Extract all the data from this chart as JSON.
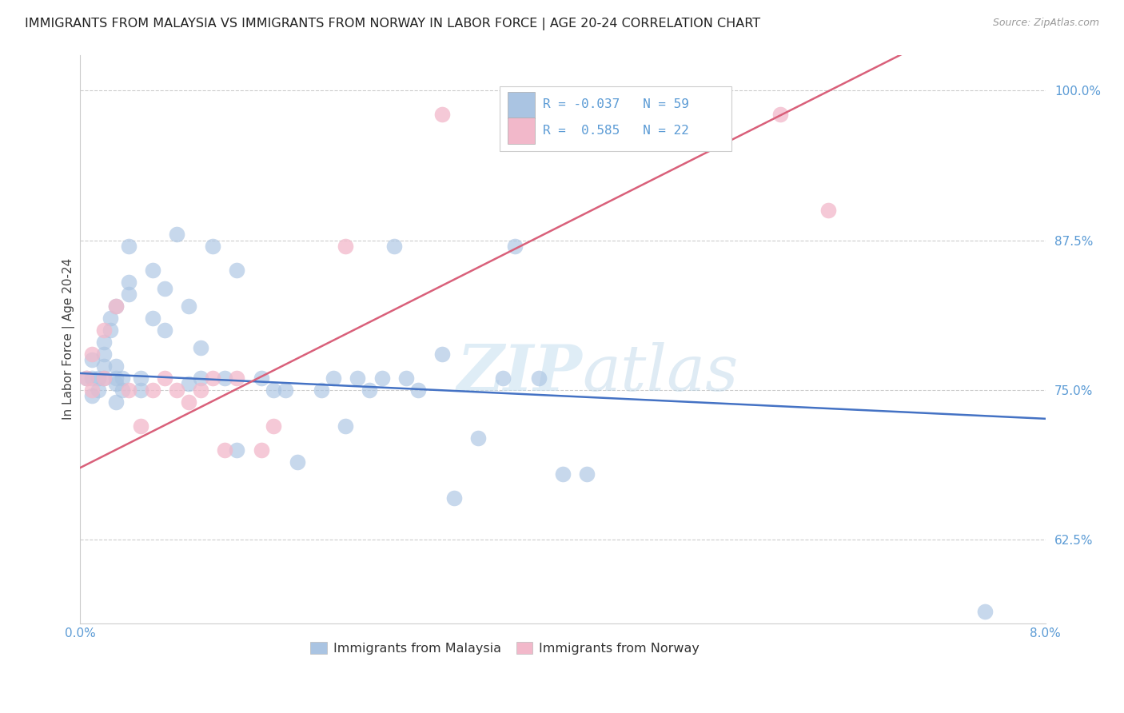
{
  "title": "IMMIGRANTS FROM MALAYSIA VS IMMIGRANTS FROM NORWAY IN LABOR FORCE | AGE 20-24 CORRELATION CHART",
  "source": "Source: ZipAtlas.com",
  "ylabel": "In Labor Force | Age 20-24",
  "x_min": 0.0,
  "x_max": 0.08,
  "y_min": 0.555,
  "y_max": 1.03,
  "y_ticks": [
    0.625,
    0.75,
    0.875,
    1.0
  ],
  "y_tick_labels": [
    "62.5%",
    "75.0%",
    "87.5%",
    "100.0%"
  ],
  "x_tick_positions": [
    0.0,
    0.01,
    0.02,
    0.03,
    0.04,
    0.05,
    0.06,
    0.07,
    0.08
  ],
  "x_tick_labels": [
    "0.0%",
    "",
    "",
    "",
    "",
    "",
    "",
    "",
    "8.0%"
  ],
  "blue_scatter_color": "#aac4e2",
  "pink_scatter_color": "#f2b8ca",
  "blue_line_color": "#4472c4",
  "pink_line_color": "#d9607a",
  "tick_label_color": "#5b9bd5",
  "watermark": "ZIPatlas",
  "malaysia_R": -0.037,
  "malaysia_N": 59,
  "norway_R": 0.585,
  "norway_N": 22,
  "malaysia_x": [
    0.0005,
    0.001,
    0.001,
    0.001,
    0.0015,
    0.0015,
    0.002,
    0.002,
    0.002,
    0.002,
    0.0025,
    0.0025,
    0.003,
    0.003,
    0.003,
    0.003,
    0.003,
    0.0035,
    0.0035,
    0.004,
    0.004,
    0.004,
    0.005,
    0.005,
    0.006,
    0.006,
    0.007,
    0.007,
    0.008,
    0.009,
    0.009,
    0.01,
    0.01,
    0.011,
    0.012,
    0.013,
    0.013,
    0.015,
    0.016,
    0.017,
    0.018,
    0.02,
    0.021,
    0.022,
    0.023,
    0.024,
    0.025,
    0.026,
    0.027,
    0.028,
    0.03,
    0.031,
    0.033,
    0.035,
    0.036,
    0.038,
    0.04,
    0.042,
    0.075
  ],
  "malaysia_y": [
    0.76,
    0.745,
    0.76,
    0.775,
    0.75,
    0.76,
    0.76,
    0.77,
    0.78,
    0.79,
    0.8,
    0.81,
    0.74,
    0.755,
    0.76,
    0.77,
    0.82,
    0.75,
    0.76,
    0.83,
    0.84,
    0.87,
    0.75,
    0.76,
    0.81,
    0.85,
    0.8,
    0.835,
    0.88,
    0.755,
    0.82,
    0.76,
    0.785,
    0.87,
    0.76,
    0.7,
    0.85,
    0.76,
    0.75,
    0.75,
    0.69,
    0.75,
    0.76,
    0.72,
    0.76,
    0.75,
    0.76,
    0.87,
    0.76,
    0.75,
    0.78,
    0.66,
    0.71,
    0.76,
    0.87,
    0.76,
    0.68,
    0.68,
    0.565
  ],
  "norway_x": [
    0.0005,
    0.001,
    0.001,
    0.002,
    0.002,
    0.003,
    0.004,
    0.005,
    0.006,
    0.007,
    0.008,
    0.009,
    0.01,
    0.011,
    0.012,
    0.013,
    0.015,
    0.016,
    0.022,
    0.03,
    0.058,
    0.062
  ],
  "norway_y": [
    0.76,
    0.75,
    0.78,
    0.76,
    0.8,
    0.82,
    0.75,
    0.72,
    0.75,
    0.76,
    0.75,
    0.74,
    0.75,
    0.76,
    0.7,
    0.76,
    0.7,
    0.72,
    0.87,
    0.98,
    0.98,
    0.9
  ],
  "blue_line_x0": 0.0,
  "blue_line_y0": 0.764,
  "blue_line_x1": 0.08,
  "blue_line_y1": 0.726,
  "pink_line_x0": 0.0,
  "pink_line_y0": 0.685,
  "pink_line_x1": 0.068,
  "pink_line_y1": 1.03
}
